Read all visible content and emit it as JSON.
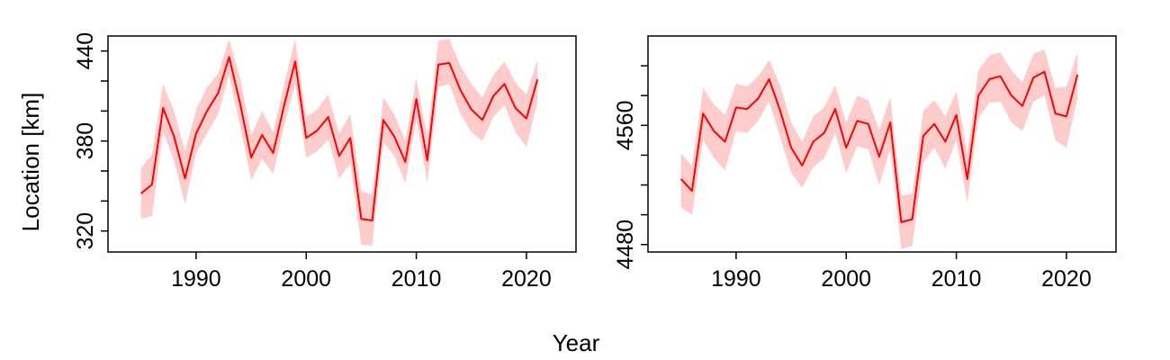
{
  "figure": {
    "xlabel": "Year",
    "ylabel": "Location [km]"
  },
  "chart_data": [
    {
      "type": "line",
      "xlim": [
        1982,
        2024.5
      ],
      "ylim": [
        306,
        450
      ],
      "xticks": [
        1990,
        2000,
        2010,
        2020
      ],
      "yticks_labeled": [
        320,
        380,
        440
      ],
      "yticks_minor": [
        340,
        360,
        400,
        420
      ],
      "line_color": "#ff0000",
      "band_color": "#ffcccc",
      "series": [
        {
          "x": [
            1985,
            1986,
            1987,
            1988,
            1989,
            1990,
            1991,
            1992,
            1993,
            1994,
            1995,
            1996,
            1997,
            1998,
            1999,
            2000,
            2001,
            2002,
            2003,
            2004,
            2005,
            2006,
            2007,
            2008,
            2009,
            2010,
            2011,
            2012,
            2013,
            2014,
            2015,
            2016,
            2017,
            2018,
            2019,
            2020,
            2021
          ],
          "y": [
            345,
            351,
            402,
            383,
            355,
            385,
            400,
            412,
            436,
            405,
            369,
            384,
            372,
            404,
            433,
            382,
            387,
            396,
            370,
            382,
            328,
            327,
            394,
            383,
            366,
            408,
            367,
            431,
            432,
            414,
            401,
            394,
            410,
            418,
            402,
            395,
            421
          ],
          "lower": [
            328,
            330,
            386,
            367,
            338,
            372,
            385,
            398,
            424,
            390,
            354,
            368,
            358,
            390,
            418,
            369,
            373,
            381,
            355,
            365,
            311,
            310,
            379,
            370,
            352,
            394,
            352,
            416,
            418,
            398,
            386,
            380,
            396,
            404,
            386,
            376,
            406
          ],
          "upper": [
            362,
            371,
            418,
            400,
            373,
            401,
            416,
            425,
            448,
            422,
            384,
            400,
            386,
            418,
            448,
            396,
            401,
            411,
            385,
            398,
            347,
            344,
            409,
            398,
            380,
            422,
            383,
            447,
            448,
            430,
            418,
            409,
            424,
            433,
            419,
            411,
            434
          ]
        }
      ]
    },
    {
      "type": "line",
      "xlim": [
        1982,
        2024.5
      ],
      "ylim": [
        4475,
        4620
      ],
      "xticks": [
        1990,
        2000,
        2010,
        2020
      ],
      "yticks_labeled": [
        4480,
        4560
      ],
      "yticks_minor": [
        4500,
        4520,
        4540,
        4580,
        4600
      ],
      "line_color": "#ff0000",
      "band_color": "#ffcccc",
      "series": [
        {
          "x": [
            1985,
            1986,
            1987,
            1988,
            1989,
            1990,
            1991,
            1992,
            1993,
            1994,
            1995,
            1996,
            1997,
            1998,
            1999,
            2000,
            2001,
            2002,
            2003,
            2004,
            2005,
            2006,
            2007,
            2008,
            2009,
            2010,
            2011,
            2012,
            2013,
            2014,
            2015,
            2016,
            2017,
            2018,
            2019,
            2020,
            2021
          ],
          "y": [
            4524,
            4516,
            4568,
            4556,
            4549,
            4572,
            4571,
            4578,
            4591,
            4570,
            4545,
            4533,
            4549,
            4555,
            4571,
            4545,
            4563,
            4561,
            4539,
            4562,
            4495,
            4497,
            4553,
            4561,
            4549,
            4567,
            4524,
            4580,
            4591,
            4593,
            4580,
            4573,
            4592,
            4596,
            4568,
            4566,
            4594
          ],
          "lower": [
            4505,
            4500,
            4550,
            4538,
            4530,
            4556,
            4555,
            4563,
            4576,
            4552,
            4528,
            4518,
            4532,
            4538,
            4555,
            4528,
            4546,
            4544,
            4520,
            4544,
            4477,
            4479,
            4535,
            4545,
            4531,
            4550,
            4508,
            4565,
            4575,
            4576,
            4562,
            4556,
            4576,
            4580,
            4550,
            4545,
            4578
          ],
          "upper": [
            4541,
            4533,
            4585,
            4574,
            4567,
            4588,
            4586,
            4593,
            4604,
            4587,
            4562,
            4549,
            4566,
            4572,
            4587,
            4562,
            4580,
            4577,
            4557,
            4579,
            4513,
            4514,
            4570,
            4577,
            4566,
            4583,
            4541,
            4597,
            4607,
            4609,
            4597,
            4589,
            4608,
            4611,
            4585,
            4586,
            4609
          ]
        }
      ]
    }
  ]
}
